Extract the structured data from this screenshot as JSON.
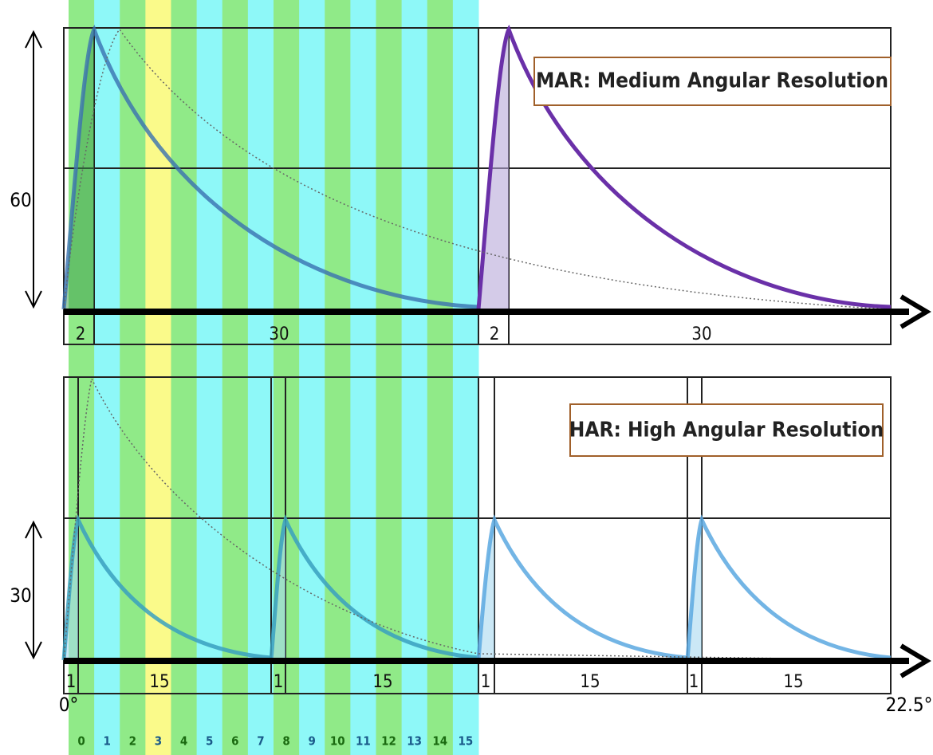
{
  "mar": {
    "title": "MAR: Medium Angular Resolution",
    "height_label": "60",
    "left_segments": [
      "2",
      "30"
    ],
    "right_segments": [
      "2",
      "30"
    ]
  },
  "har": {
    "title": "HAR: High Angular Resolution",
    "height_label": "30",
    "left_segments": [
      "1",
      "15",
      "1",
      "15"
    ],
    "right_segments": [
      "1",
      "15",
      "1",
      "15"
    ]
  },
  "axis": {
    "start": "0°",
    "end": "22.5°"
  },
  "columns": [
    "0",
    "1",
    "2",
    "3",
    "4",
    "5",
    "6",
    "7",
    "8",
    "9",
    "10",
    "11",
    "12",
    "13",
    "14",
    "15"
  ]
}
